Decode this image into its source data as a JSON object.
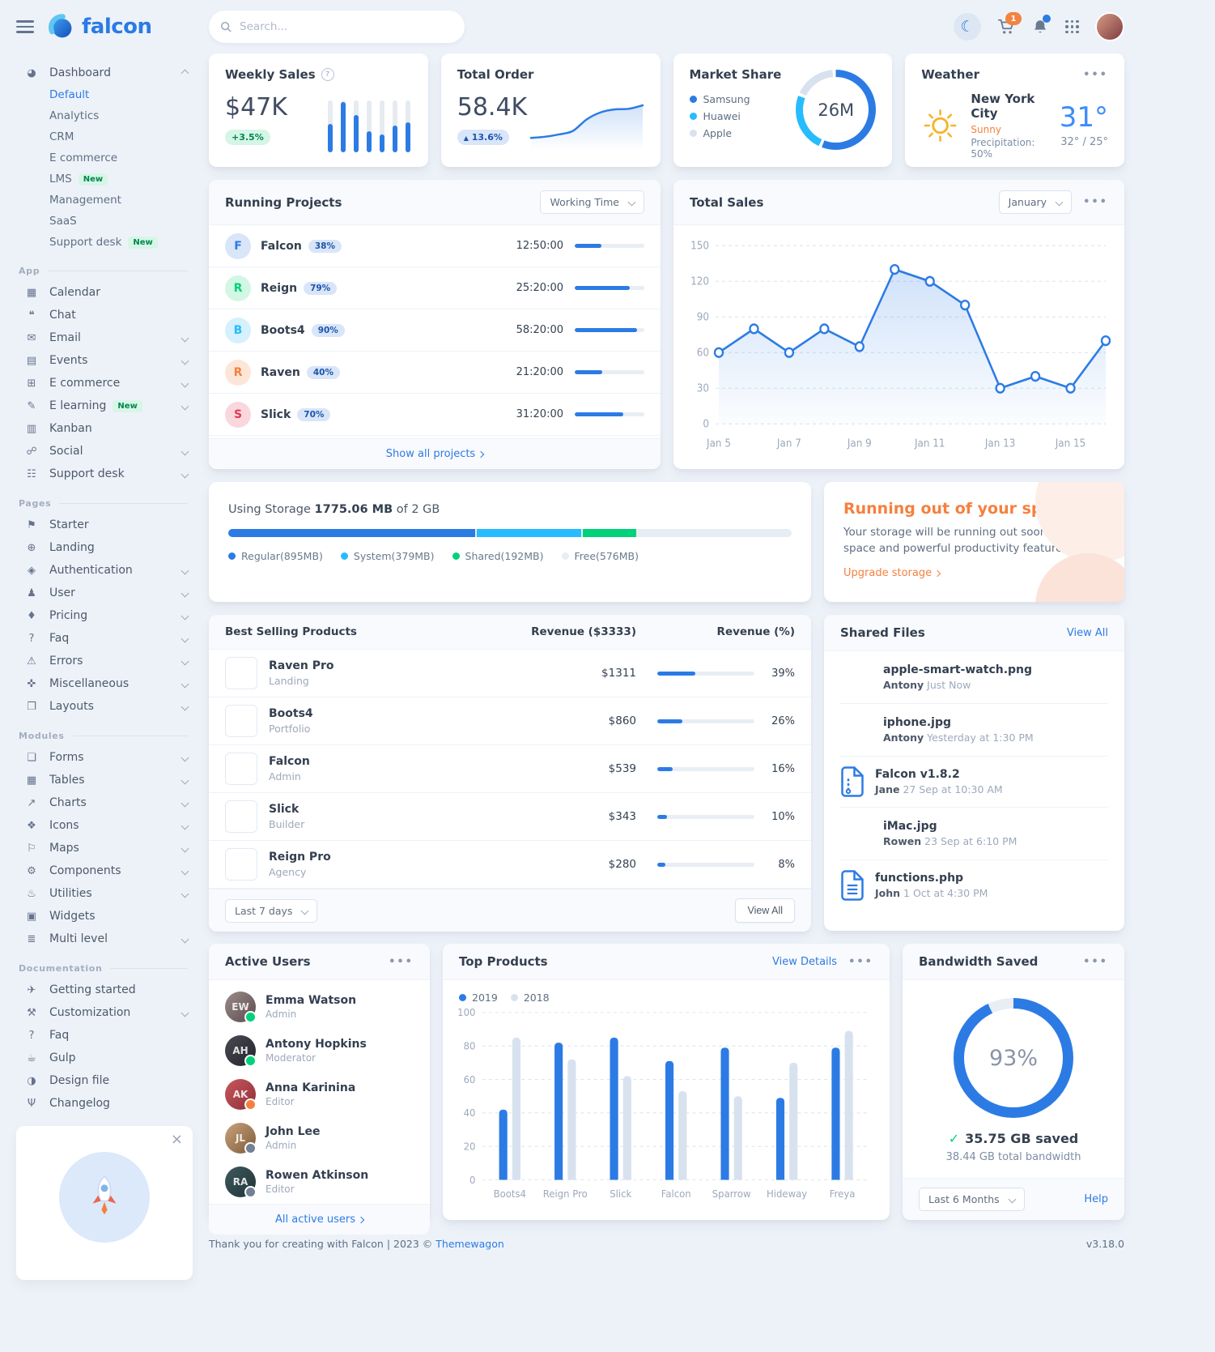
{
  "header": {
    "brand": "falcon",
    "search_placeholder": "Search...",
    "cart_count": "1"
  },
  "sidebar": {
    "sections": [
      {
        "heading": null,
        "items": [
          {
            "label": "Dashboard",
            "icon": "pie-chart",
            "chevron": "up",
            "active": true,
            "children": [
              {
                "label": "Default",
                "active": true
              },
              {
                "label": "Analytics"
              },
              {
                "label": "CRM"
              },
              {
                "label": "E commerce"
              },
              {
                "label": "LMS",
                "badge": "New"
              },
              {
                "label": "Management"
              },
              {
                "label": "SaaS"
              },
              {
                "label": "Support desk",
                "badge": "New"
              }
            ]
          }
        ]
      },
      {
        "heading": "App",
        "items": [
          {
            "label": "Calendar",
            "icon": "calendar"
          },
          {
            "label": "Chat",
            "icon": "chat"
          },
          {
            "label": "Email",
            "icon": "email",
            "chevron": "down"
          },
          {
            "label": "Events",
            "icon": "events",
            "chevron": "down"
          },
          {
            "label": "E commerce",
            "icon": "cart",
            "chevron": "down"
          },
          {
            "label": "E learning",
            "icon": "graduation-cap",
            "badge": "New",
            "chevron": "down"
          },
          {
            "label": "Kanban",
            "icon": "kanban"
          },
          {
            "label": "Social",
            "icon": "share",
            "chevron": "down"
          },
          {
            "label": "Support desk",
            "icon": "ticket",
            "chevron": "down"
          }
        ]
      },
      {
        "heading": "Pages",
        "items": [
          {
            "label": "Starter",
            "icon": "flag"
          },
          {
            "label": "Landing",
            "icon": "globe"
          },
          {
            "label": "Authentication",
            "icon": "lock",
            "chevron": "down"
          },
          {
            "label": "User",
            "icon": "user",
            "chevron": "down"
          },
          {
            "label": "Pricing",
            "icon": "tags",
            "chevron": "down"
          },
          {
            "label": "Faq",
            "icon": "question",
            "chevron": "down"
          },
          {
            "label": "Errors",
            "icon": "warning",
            "chevron": "down"
          },
          {
            "label": "Miscellaneous",
            "icon": "thumbtack",
            "chevron": "down"
          },
          {
            "label": "Layouts",
            "icon": "layout",
            "chevron": "down"
          }
        ]
      },
      {
        "heading": "Modules",
        "items": [
          {
            "label": "Forms",
            "icon": "file",
            "chevron": "down"
          },
          {
            "label": "Tables",
            "icon": "table",
            "chevron": "down"
          },
          {
            "label": "Charts",
            "icon": "chart",
            "chevron": "down"
          },
          {
            "label": "Icons",
            "icon": "shapes",
            "chevron": "down"
          },
          {
            "label": "Maps",
            "icon": "map",
            "chevron": "down"
          },
          {
            "label": "Components",
            "icon": "puzzle",
            "chevron": "down"
          },
          {
            "label": "Utilities",
            "icon": "fire",
            "chevron": "down"
          },
          {
            "label": "Widgets",
            "icon": "widgets"
          },
          {
            "label": "Multi level",
            "icon": "layers",
            "chevron": "down"
          }
        ]
      },
      {
        "heading": "Documentation",
        "items": [
          {
            "label": "Getting started",
            "icon": "rocket"
          },
          {
            "label": "Customization",
            "icon": "wrench",
            "chevron": "down"
          },
          {
            "label": "Faq",
            "icon": "question"
          },
          {
            "label": "Gulp",
            "icon": "gulp"
          },
          {
            "label": "Design file",
            "icon": "palette"
          },
          {
            "label": "Changelog",
            "icon": "branch"
          }
        ]
      }
    ]
  },
  "weekly_sales": {
    "title": "Weekly Sales",
    "value": "$47K",
    "delta": "+3.5%"
  },
  "total_order": {
    "title": "Total Order",
    "value": "58.4K",
    "delta": "13.6%"
  },
  "market_share": {
    "title": "Market Share",
    "center": "26M",
    "legend": [
      {
        "label": "Samsung",
        "color": "#2c7be5"
      },
      {
        "label": "Huawei",
        "color": "#27bcfd"
      },
      {
        "label": "Apple",
        "color": "#d8e2ef"
      }
    ]
  },
  "weather": {
    "title": "Weather",
    "city": "New York City",
    "condition": "Sunny",
    "precipitation": "Precipitation: 50%",
    "temp": "31°",
    "range": "32° / 25°"
  },
  "running_projects": {
    "title": "Running Projects",
    "filter": "Working Time",
    "footer_link": "Show all projects",
    "projects": [
      {
        "letter": "F",
        "name": "Falcon",
        "percent": 38,
        "time": "12:50:00",
        "bg": "#d9e5f8",
        "fg": "#2c7be5"
      },
      {
        "letter": "R",
        "name": "Reign",
        "percent": 79,
        "time": "25:20:00",
        "bg": "#d2f7e4",
        "fg": "#00d27a"
      },
      {
        "letter": "B",
        "name": "Boots4",
        "percent": 90,
        "time": "58:20:00",
        "bg": "#d4f1fd",
        "fg": "#27bcfd"
      },
      {
        "letter": "R",
        "name": "Raven",
        "percent": 40,
        "time": "21:20:00",
        "bg": "#fde6d8",
        "fg": "#f5803e"
      },
      {
        "letter": "S",
        "name": "Slick",
        "percent": 70,
        "time": "31:20:00",
        "bg": "#fad7dd",
        "fg": "#e63757"
      }
    ]
  },
  "total_sales": {
    "title": "Total Sales",
    "month": "January"
  },
  "storage": {
    "label_prefix": "Using Storage ",
    "used": "1775.06 MB",
    "label_suffix": " of 2 GB",
    "total_mb": 2042,
    "segments": [
      {
        "label": "Regular(895MB)",
        "mb": 895,
        "color": "#2c7be5"
      },
      {
        "label": "System(379MB)",
        "mb": 379,
        "color": "#27bcfd"
      },
      {
        "label": "Shared(192MB)",
        "mb": 192,
        "color": "#00d27a"
      },
      {
        "label": "Free(576MB)",
        "mb": 576,
        "color": "#e7edf5"
      }
    ]
  },
  "space": {
    "title": "Running out of your space?",
    "body": "Your storage will be running out soon. Get more space and powerful productivity features.",
    "link": "Upgrade storage"
  },
  "best_selling": {
    "title": "Best Selling Products",
    "col_revenue": "Revenue ($3333)",
    "col_percent": "Revenue (%)",
    "range": "Last 7 days",
    "view_all": "View All",
    "products": [
      {
        "name": "Raven Pro",
        "category": "Landing",
        "revenue": "$1311",
        "percent": 39,
        "thumb": "t-raven"
      },
      {
        "name": "Boots4",
        "category": "Portfolio",
        "revenue": "$860",
        "percent": 26,
        "thumb": "t-boots4"
      },
      {
        "name": "Falcon",
        "category": "Admin",
        "revenue": "$539",
        "percent": 16,
        "thumb": "t-falcon"
      },
      {
        "name": "Slick",
        "category": "Builder",
        "revenue": "$343",
        "percent": 10,
        "thumb": "t-slick"
      },
      {
        "name": "Reign Pro",
        "category": "Agency",
        "revenue": "$280",
        "percent": 8,
        "thumb": "t-reign"
      }
    ]
  },
  "shared_files": {
    "title": "Shared Files",
    "view_all": "View All",
    "files": [
      {
        "name": "apple-smart-watch.png",
        "by": "Antony",
        "time": "Just Now",
        "type": "image",
        "thumb": "t-watch"
      },
      {
        "name": "iphone.jpg",
        "by": "Antony",
        "time": "Yesterday at 1:30 PM",
        "type": "image",
        "thumb": "t-iphone"
      },
      {
        "name": "Falcon v1.8.2",
        "by": "Jane",
        "time": "27 Sep at 10:30 AM",
        "type": "zip"
      },
      {
        "name": "iMac.jpg",
        "by": "Rowen",
        "time": "23 Sep at 6:10 PM",
        "type": "image",
        "thumb": "t-imac"
      },
      {
        "name": "functions.php",
        "by": "John",
        "time": "1 Oct at 4:30 PM",
        "type": "code"
      }
    ]
  },
  "active_users": {
    "title": "Active Users",
    "footer_link": "All active users",
    "users": [
      {
        "name": "Emma Watson",
        "role": "Admin",
        "status_color": "#00d27a"
      },
      {
        "name": "Antony Hopkins",
        "role": "Moderator",
        "status_color": "#00d27a"
      },
      {
        "name": "Anna Karinina",
        "role": "Editor",
        "status_color": "#f5803e"
      },
      {
        "name": "John Lee",
        "role": "Admin",
        "status_color": "#748194"
      },
      {
        "name": "Rowen Atkinson",
        "role": "Editor",
        "status_color": "#748194"
      }
    ]
  },
  "top_products": {
    "title": "Top Products",
    "view_details": "View Details"
  },
  "bandwidth": {
    "title": "Bandwidth Saved",
    "percent": "93%",
    "saved": "35.75 GB saved",
    "total": "38.44 GB total bandwidth",
    "range": "Last 6 Months",
    "help": "Help"
  },
  "footer": {
    "text": "Thank you for creating with Falcon | 2023 © ",
    "link": "Themewagon",
    "version": "v3.18.0"
  },
  "chart_data": [
    {
      "id": "weekly-sales",
      "type": "bar",
      "title": "Weekly Sales",
      "values": [
        55,
        97,
        72,
        40,
        34,
        52,
        58
      ],
      "ylim": [
        0,
        100
      ],
      "grid": false
    },
    {
      "id": "total-order",
      "type": "line",
      "title": "Total Order",
      "values": [
        8,
        10,
        14,
        20,
        40,
        52,
        57,
        58,
        64
      ],
      "grid": false
    },
    {
      "id": "market-share",
      "type": "pie",
      "title": "Market Share",
      "categories": [
        "Samsung",
        "Huawei",
        "Apple"
      ],
      "values": [
        57,
        25,
        18
      ],
      "colors": [
        "#2c7be5",
        "#27bcfd",
        "#d8e2ef"
      ],
      "center_label": "26M"
    },
    {
      "id": "total-sales",
      "type": "line",
      "title": "Total Sales",
      "x": [
        "Jan 5",
        "Jan 6",
        "Jan 7",
        "Jan 8",
        "Jan 9",
        "Jan 10",
        "Jan 11",
        "Jan 12",
        "Jan 13",
        "Jan 14",
        "Jan 15",
        "Jan 16"
      ],
      "values": [
        60,
        80,
        60,
        80,
        65,
        130,
        120,
        100,
        30,
        40,
        30,
        70
      ],
      "xticks": [
        "Jan 5",
        "Jan 7",
        "Jan 9",
        "Jan 11",
        "Jan 13",
        "Jan 15"
      ],
      "yticks": [
        0,
        30,
        60,
        90,
        120,
        150
      ],
      "ylim": [
        0,
        150
      ],
      "grid": true,
      "line_color": "#2c7be5"
    },
    {
      "id": "top-products",
      "type": "bar",
      "title": "Top Products",
      "categories": [
        "Boots4",
        "Reign Pro",
        "Slick",
        "Falcon",
        "Sparrow",
        "Hideway",
        "Freya"
      ],
      "series": [
        {
          "name": "2019",
          "color": "#2c7be5",
          "values": [
            42,
            82,
            85,
            71,
            79,
            49,
            79
          ]
        },
        {
          "name": "2018",
          "color": "#d8e2ef",
          "values": [
            85,
            72,
            62,
            53,
            50,
            70,
            89
          ]
        }
      ],
      "yticks": [
        0,
        20,
        40,
        60,
        80,
        100
      ],
      "ylim": [
        0,
        100
      ],
      "grid": true,
      "legend_position": "top-left"
    },
    {
      "id": "bandwidth-saved",
      "type": "donut",
      "title": "Bandwidth Saved",
      "value": 93,
      "color": "#2c7be5",
      "track": "#e9edf4"
    }
  ]
}
